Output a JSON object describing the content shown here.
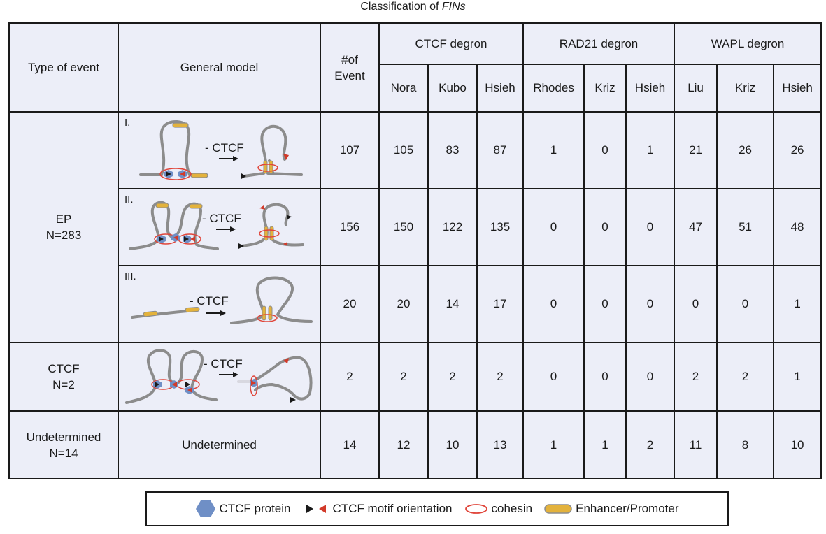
{
  "title": {
    "prefix": "Classification of ",
    "italic": "FINs"
  },
  "headers": {
    "type_of_event": "Type of event",
    "general_model": "General model",
    "num_event": [
      "#of",
      "Event"
    ],
    "groups": [
      "CTCF degron",
      "RAD21 degron",
      "WAPL degron"
    ],
    "studies": [
      "Nora",
      "Kubo",
      "Hsieh",
      "Rhodes",
      "Kriz",
      "Hsieh",
      "Liu",
      "Kriz",
      "Hsieh"
    ]
  },
  "model_labels": {
    "minus_ctcf": "- CTCF",
    "roman": [
      "I.",
      "II.",
      "III."
    ]
  },
  "rows": [
    {
      "type": [
        "EP",
        "N=283"
      ],
      "count": "107",
      "values": [
        "105",
        "83",
        "87",
        "1",
        "0",
        "1",
        "21",
        "26",
        "26"
      ]
    },
    {
      "count": "156",
      "values": [
        "150",
        "122",
        "135",
        "0",
        "0",
        "0",
        "47",
        "51",
        "48"
      ]
    },
    {
      "count": "20",
      "values": [
        "20",
        "14",
        "17",
        "0",
        "0",
        "0",
        "0",
        "0",
        "1"
      ]
    },
    {
      "type": [
        "CTCF",
        "N=2"
      ],
      "count": "2",
      "values": [
        "2",
        "2",
        "2",
        "0",
        "0",
        "0",
        "2",
        "2",
        "1"
      ]
    },
    {
      "type": [
        "Undetermined",
        "N=14"
      ],
      "model": "Undetermined",
      "count": "14",
      "values": [
        "12",
        "10",
        "13",
        "1",
        "1",
        "2",
        "11",
        "8",
        "10"
      ]
    }
  ],
  "legend": {
    "ctcf_protein": "CTCF protein",
    "motif": "CTCF motif orientation",
    "cohesin": "cohesin",
    "enhancer": "Enhancer/Promoter"
  },
  "colors": {
    "cell_bg": "#eceef8",
    "chromatin": "#8c8c8c",
    "ctcf_protein": "#6f8fc6",
    "motif_red": "#d23a2a",
    "motif_black": "#1a1a1a",
    "cohesin": "#e0453a",
    "enhancer": "#e3b23c"
  }
}
